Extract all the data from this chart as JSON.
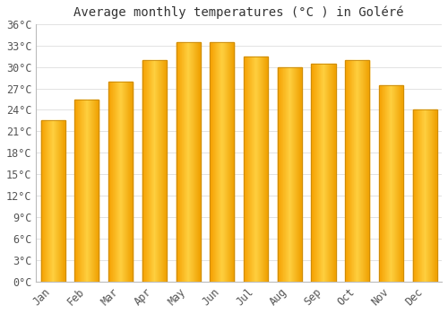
{
  "title": "Average monthly temperatures (°C ) in Goléré",
  "months": [
    "Jan",
    "Feb",
    "Mar",
    "Apr",
    "May",
    "Jun",
    "Jul",
    "Aug",
    "Sep",
    "Oct",
    "Nov",
    "Dec"
  ],
  "values": [
    22.5,
    25.5,
    28.0,
    31.0,
    33.5,
    33.5,
    31.5,
    30.0,
    30.5,
    31.0,
    27.5,
    24.0
  ],
  "bar_color_left": "#F5A623",
  "bar_color_center": "#FFD040",
  "bar_color_right": "#F5A000",
  "bar_edge_color": "#C8890A",
  "background_color": "#FFFFFF",
  "grid_color": "#DDDDDD",
  "text_color": "#555555",
  "title_color": "#333333",
  "ylim": [
    0,
    36
  ],
  "ytick_step": 3,
  "title_fontsize": 10,
  "tick_fontsize": 8.5,
  "bar_width": 0.72
}
